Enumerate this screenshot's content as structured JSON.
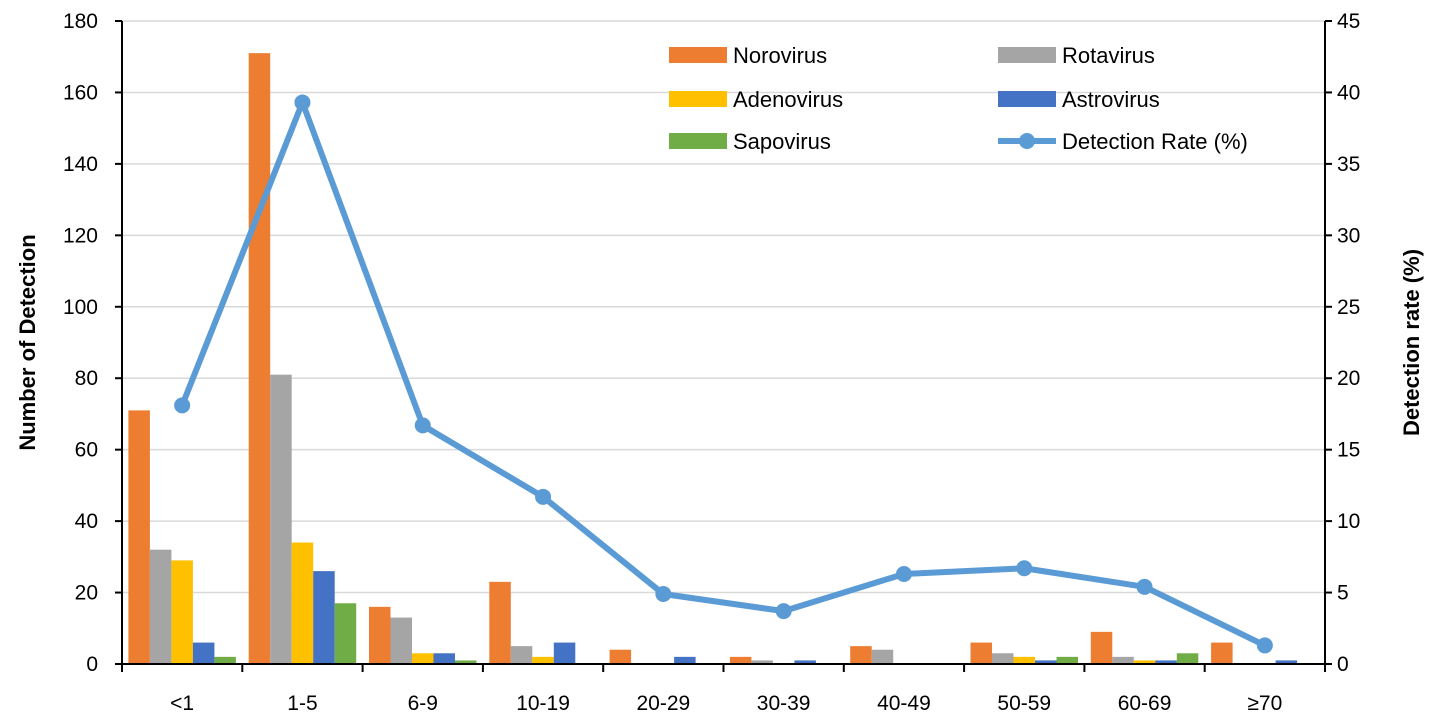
{
  "chart_data": {
    "type": "bar",
    "title": "",
    "categories": [
      "<1",
      "1-5",
      "6-9",
      "10-19",
      "20-29",
      "30-39",
      "40-49",
      "50-59",
      "60-69",
      "≥70"
    ],
    "series": [
      {
        "name": "Norovirus",
        "type": "bar",
        "color": "#ed7d31",
        "values": [
          71,
          171,
          16,
          23,
          4,
          2,
          5,
          6,
          9,
          6
        ]
      },
      {
        "name": "Rotavirus",
        "type": "bar",
        "color": "#a5a5a5",
        "values": [
          32,
          81,
          13,
          5,
          0,
          1,
          4,
          3,
          2,
          0
        ]
      },
      {
        "name": "Adenovirus",
        "type": "bar",
        "color": "#ffc000",
        "values": [
          29,
          34,
          3,
          2,
          0,
          0,
          0,
          2,
          1,
          0
        ]
      },
      {
        "name": "Astrovirus",
        "type": "bar",
        "color": "#4472c4",
        "values": [
          6,
          26,
          3,
          6,
          2,
          1,
          0,
          1,
          1,
          1
        ]
      },
      {
        "name": "Sapovirus",
        "type": "bar",
        "color": "#70ad47",
        "values": [
          2,
          17,
          1,
          0,
          0,
          0,
          0,
          2,
          3,
          0
        ]
      },
      {
        "name": "Detection Rate (%)",
        "type": "line",
        "axis": "right",
        "color": "#5b9bd5",
        "values": [
          18.1,
          39.3,
          16.7,
          11.7,
          4.9,
          3.7,
          6.3,
          6.7,
          5.4,
          1.3
        ]
      }
    ],
    "ylabel": "Number of Detection",
    "y2label": "Detection rate (%)",
    "ylim": [
      0,
      180
    ],
    "yticks": [
      0,
      20,
      40,
      60,
      80,
      100,
      120,
      140,
      160,
      180
    ],
    "y2lim": [
      0,
      45
    ],
    "y2ticks": [
      0,
      5,
      10,
      15,
      20,
      25,
      30,
      35,
      40,
      45
    ],
    "grid": true,
    "legend_position": "top-right"
  }
}
